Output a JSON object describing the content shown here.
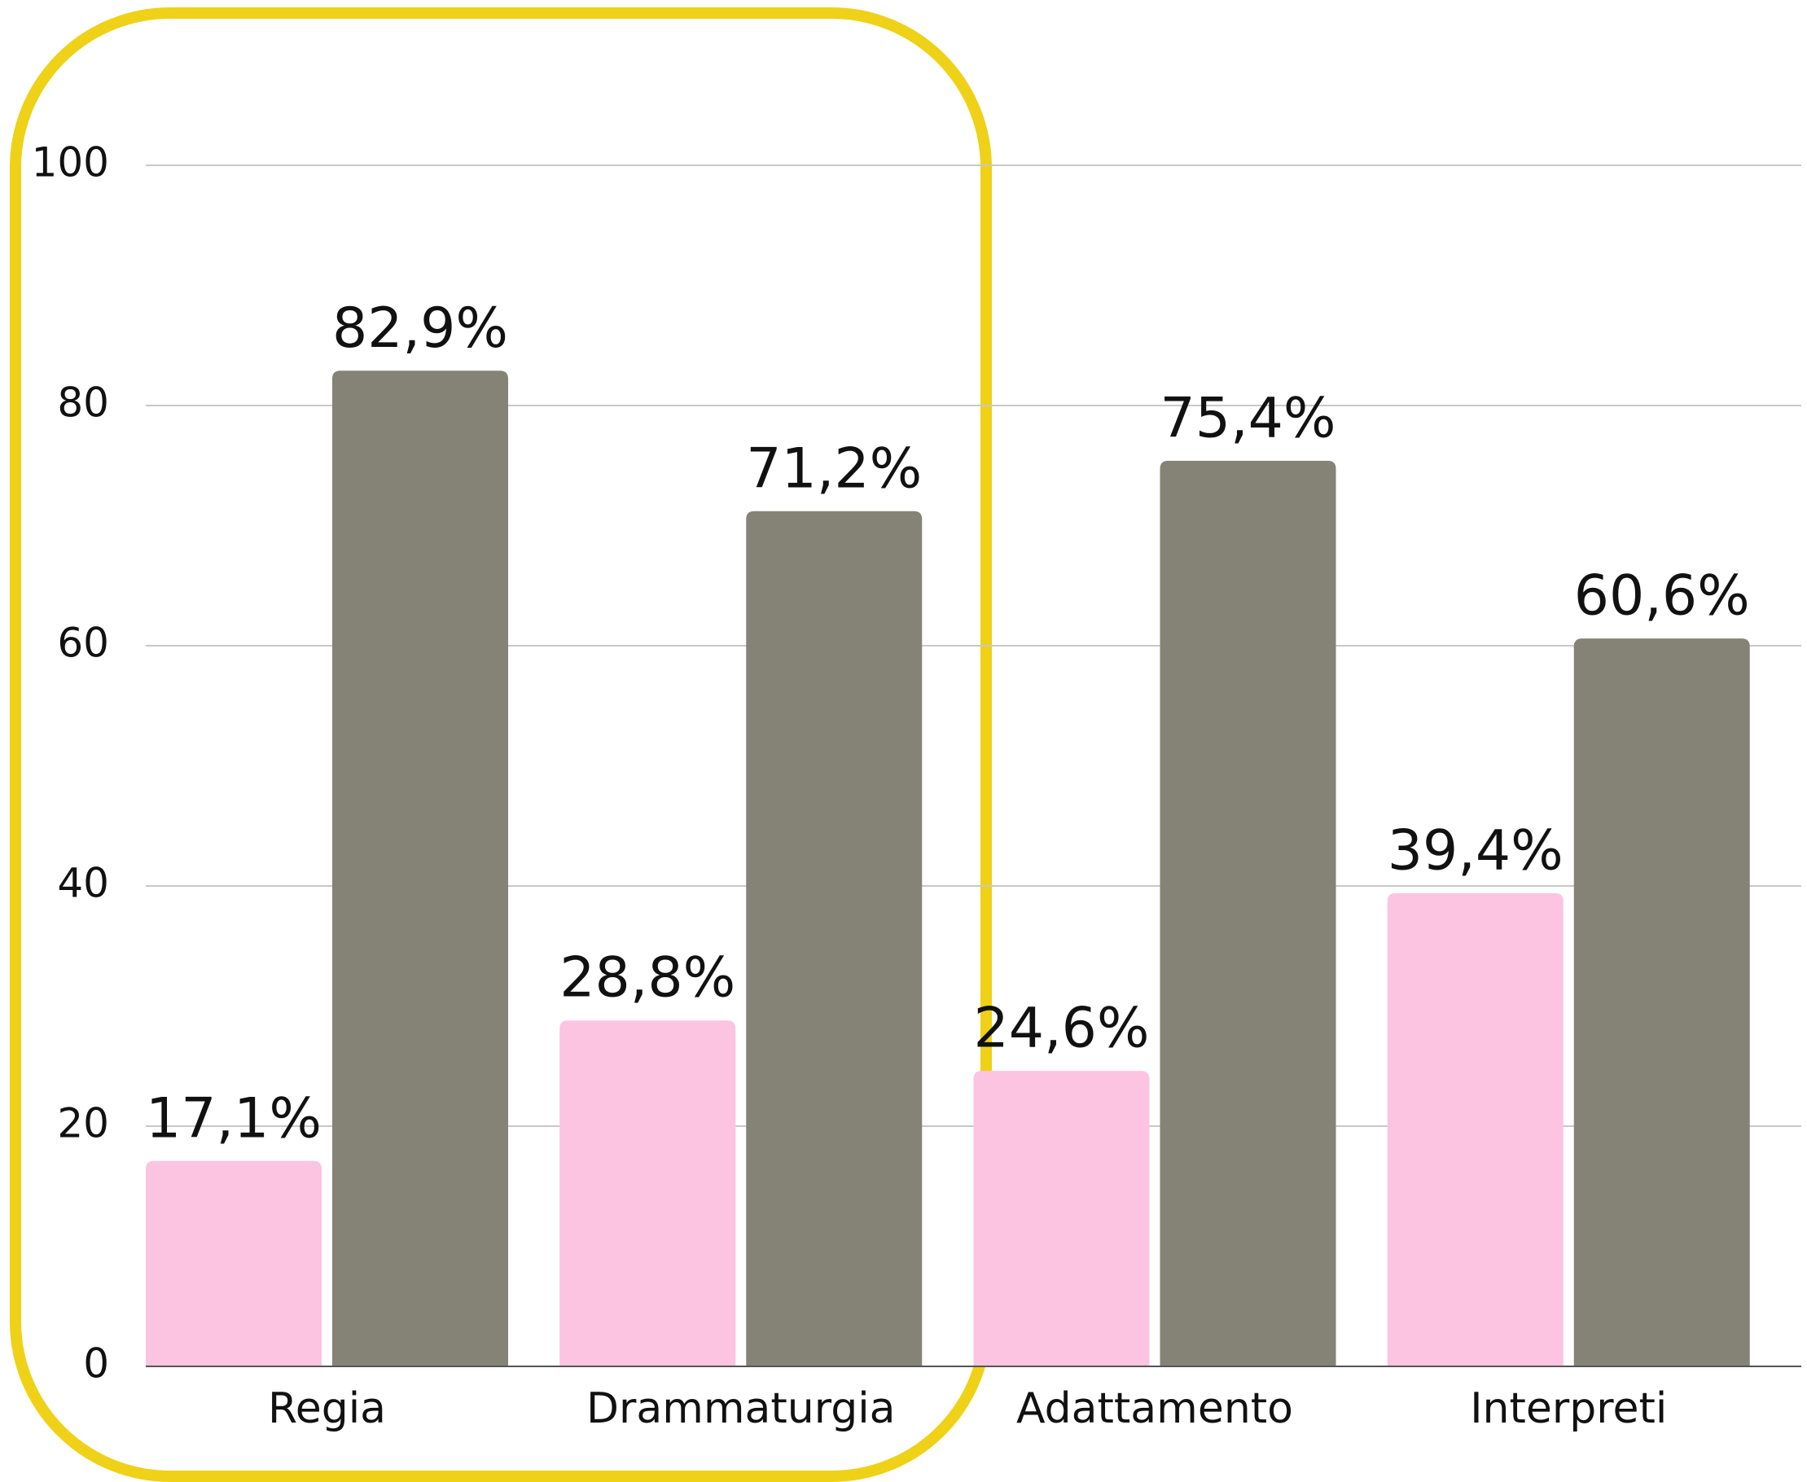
{
  "chart_data": {
    "type": "bar",
    "categories": [
      "Regia",
      "Drammaturgia",
      "Adattamento",
      "Interpreti"
    ],
    "series": [
      {
        "color": "#fcc4e1",
        "values": [
          17.1,
          28.8,
          24.6,
          39.4
        ],
        "value_labels": [
          "17,1%",
          "28,8%",
          "24,6%",
          "39,4%"
        ]
      },
      {
        "color": "#858376",
        "values": [
          82.9,
          71.2,
          75.4,
          60.6
        ],
        "value_labels": [
          "82,9%",
          "71,2%",
          "75,4%",
          "60,6%"
        ]
      }
    ],
    "ylim": [
      0,
      100
    ],
    "yticks": [
      0,
      20,
      40,
      60,
      80,
      100
    ],
    "grid": true
  }
}
